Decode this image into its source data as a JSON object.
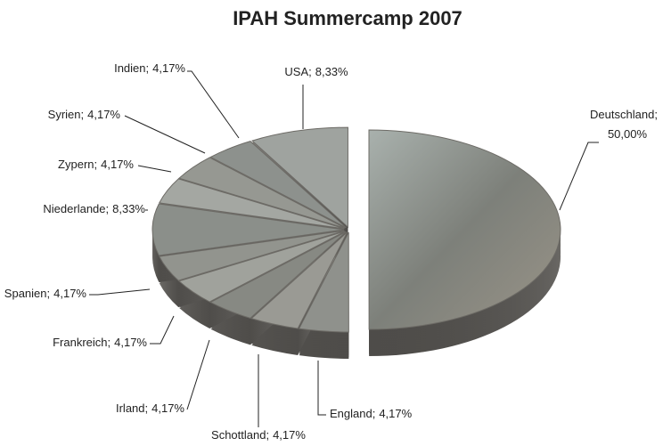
{
  "chart_data": {
    "type": "pie",
    "title": "IPAH Summercamp 2007",
    "categories": [
      "Deutschland;",
      "England;",
      "Schottland;",
      "Irland;",
      "Frankreich;",
      "Spanien;",
      "Niederlande;",
      "Zypern;",
      "Syrien;",
      "Indien;",
      "USA;"
    ],
    "values": [
      50,
      4.17,
      4.17,
      4.17,
      4.17,
      4.17,
      8.33,
      4.17,
      4.17,
      4.17,
      8.33
    ],
    "value_labels": [
      "50,00%",
      "4,17%",
      "4,17%",
      "4,17%",
      "4,17%",
      "4,17%",
      "8,33%",
      "4,17%",
      "4,17%",
      "4,17%",
      "8,33%"
    ]
  }
}
